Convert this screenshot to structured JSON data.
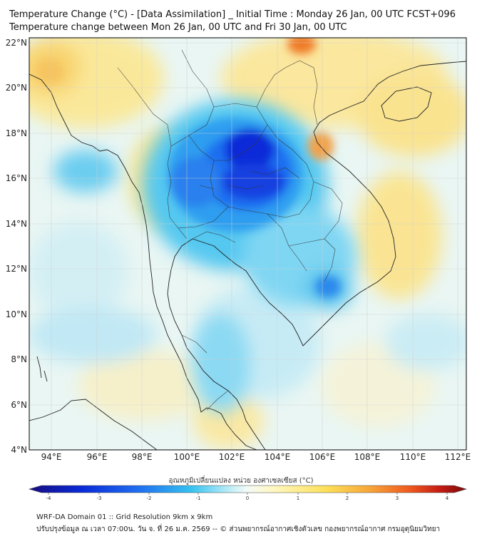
{
  "title_line1": "Temperature Change (°C) - [Data Assimilation] _ Initial Time : Monday 26 Jan, 00 UTC FCST+096",
  "title_line2": "Temperature change between Mon 26 Jan, 00 UTC and Fri 30 Jan, 00 UTC",
  "lat_labels": [
    "22°N",
    "20°N",
    "18°N",
    "16°N",
    "14°N",
    "12°N",
    "10°N",
    "8°N",
    "6°N",
    "4°N"
  ],
  "lon_labels": [
    "94°E",
    "96°E",
    "98°E",
    "100°E",
    "102°E",
    "104°E",
    "106°E",
    "108°E",
    "110°E",
    "112°E"
  ],
  "colorbar": {
    "title": "อุณหภูมิเปลี่ยนแปลง หน่วย องศาเซลเซียส (°C)",
    "ticks": [
      "-4",
      "-3",
      "-2",
      "-1",
      "0",
      "1",
      "2",
      "3",
      "4"
    ],
    "colors": [
      "#1a0f8c",
      "#0a2ad8",
      "#1f6ff0",
      "#35b8ee",
      "#9fe4f6",
      "#eef8f6",
      "#fff6b0",
      "#fde058",
      "#f7a53a",
      "#ef5a1e",
      "#c41b14",
      "#7a0a0a"
    ]
  },
  "footer_line1": "WRF-DA Domain 01 :: Grid Resolution 9km x 9km",
  "footer_line2": "ปรับปรุงข้อมูล ณ เวลา 07:00น. วัน จ. ที่ 26 ม.ค. 2569 -- © ส่วนพยากรณ์อากาศเชิงตัวเลข กองพยากรณ์อากาศ กรมอุตุนิยมวิทยา"
}
